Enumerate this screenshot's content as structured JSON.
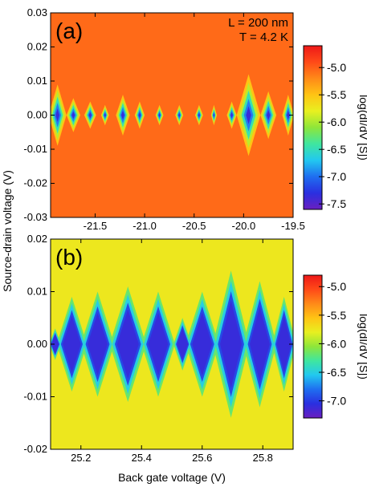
{
  "shared": {
    "ylabel": "Source-drain voltage (V)",
    "xlabel": "Back gate voltage (V)"
  },
  "colormap": [
    "#6a1fc0",
    "#2a2fe0",
    "#1f6ef0",
    "#22c8f0",
    "#3fe6a0",
    "#8ee63a",
    "#e8f020",
    "#ffc414",
    "#ff8a18",
    "#ff4a18",
    "#ee1818"
  ],
  "chart_data": [
    {
      "type": "heatmap",
      "panel_label": "(a)",
      "annotations": [
        "L = 200 nm",
        "T = 4.2 K"
      ],
      "xlim": [
        -21.95,
        -19.5
      ],
      "ylim": [
        -0.03,
        0.03
      ],
      "xticks": [
        -21.5,
        -21.0,
        -20.5,
        -20.0,
        -19.5
      ],
      "xtick_labels": [
        "-21.5",
        "-21.0",
        "-20.5",
        "-20.0",
        "-19.5"
      ],
      "yticks": [
        -0.03,
        -0.02,
        -0.01,
        0.0,
        0.01,
        0.02,
        0.03
      ],
      "ytick_labels": [
        "-0.03",
        "-0.02",
        "-0.01",
        "0.00",
        "0.01",
        "0.02",
        "0.03"
      ],
      "colorbar": {
        "label": "log(dI/dV [S])",
        "range": [
          -7.6,
          -4.6
        ],
        "ticks": [
          -5.0,
          -5.5,
          -6.0,
          -6.5,
          -7.0,
          -7.5
        ],
        "tick_labels": [
          "-5.0",
          "-5.5",
          "-6.0",
          "-6.5",
          "-7.0",
          "-7.5"
        ]
      },
      "blockade_diamonds": [
        {
          "x": -21.88,
          "half_width": 0.09,
          "half_height": 0.009
        },
        {
          "x": -21.72,
          "half_width": 0.07,
          "half_height": 0.005
        },
        {
          "x": -21.55,
          "half_width": 0.06,
          "half_height": 0.004
        },
        {
          "x": -21.4,
          "half_width": 0.04,
          "half_height": 0.003
        },
        {
          "x": -21.22,
          "half_width": 0.07,
          "half_height": 0.006
        },
        {
          "x": -21.05,
          "half_width": 0.05,
          "half_height": 0.004
        },
        {
          "x": -20.85,
          "half_width": 0.04,
          "half_height": 0.003
        },
        {
          "x": -20.65,
          "half_width": 0.04,
          "half_height": 0.003
        },
        {
          "x": -20.45,
          "half_width": 0.04,
          "half_height": 0.003
        },
        {
          "x": -20.3,
          "half_width": 0.03,
          "half_height": 0.003
        },
        {
          "x": -20.12,
          "half_width": 0.05,
          "half_height": 0.004
        },
        {
          "x": -19.95,
          "half_width": 0.12,
          "half_height": 0.012
        },
        {
          "x": -19.75,
          "half_width": 0.08,
          "half_height": 0.007
        },
        {
          "x": -19.55,
          "half_width": 0.06,
          "half_height": 0.006
        }
      ]
    },
    {
      "type": "heatmap",
      "panel_label": "(b)",
      "xlim": [
        25.1,
        25.9
      ],
      "ylim": [
        -0.02,
        0.02
      ],
      "xticks": [
        25.2,
        25.4,
        25.6,
        25.8
      ],
      "xtick_labels": [
        "25.2",
        "25.4",
        "25.6",
        "25.8"
      ],
      "yticks": [
        -0.02,
        -0.01,
        0.0,
        0.01,
        0.02
      ],
      "ytick_labels": [
        "-0.02",
        "-0.01",
        "0.00",
        "0.01",
        "0.02"
      ],
      "colorbar": {
        "label": "log(dI/dV [S])",
        "range": [
          -7.3,
          -4.8
        ],
        "ticks": [
          -5.0,
          -5.5,
          -6.0,
          -6.5,
          -7.0
        ],
        "tick_labels": [
          "-5.0",
          "-5.5",
          "-6.0",
          "-6.5",
          "-7.0"
        ]
      },
      "blockade_diamonds": [
        {
          "x": 25.115,
          "half_width": 0.02,
          "half_height": 0.003
        },
        {
          "x": 25.17,
          "half_width": 0.05,
          "half_height": 0.009
        },
        {
          "x": 25.255,
          "half_width": 0.055,
          "half_height": 0.01
        },
        {
          "x": 25.355,
          "half_width": 0.06,
          "half_height": 0.011
        },
        {
          "x": 25.455,
          "half_width": 0.055,
          "half_height": 0.01
        },
        {
          "x": 25.535,
          "half_width": 0.03,
          "half_height": 0.005
        },
        {
          "x": 25.6,
          "half_width": 0.055,
          "half_height": 0.01
        },
        {
          "x": 25.695,
          "half_width": 0.06,
          "half_height": 0.014
        },
        {
          "x": 25.79,
          "half_width": 0.055,
          "half_height": 0.012
        },
        {
          "x": 25.87,
          "half_width": 0.04,
          "half_height": 0.009
        }
      ]
    }
  ]
}
